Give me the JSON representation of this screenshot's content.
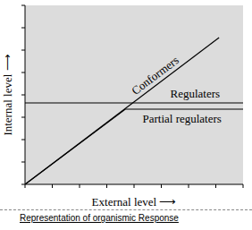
{
  "chart_data": {
    "type": "line",
    "caption": "Representation of organismic Response",
    "x_label": "External level ⟶",
    "y_label": "Internal level ⟶",
    "xlim": [
      0,
      10
    ],
    "ylim": [
      0,
      10
    ],
    "xticks": [
      0,
      1.25,
      2.5,
      3.75,
      5,
      6.25,
      7.5,
      8.75,
      10
    ],
    "yticks": [
      0,
      1.25,
      2.5,
      3.75,
      5,
      6.25,
      7.5,
      8.75,
      10
    ],
    "tick_labels": false,
    "grid": false,
    "series": [
      {
        "name": "Conformers",
        "color": "#000000",
        "x": [
          0,
          8.9
        ],
        "values": [
          0,
          8.2
        ]
      },
      {
        "name": "Regulaters",
        "color": "#000000",
        "x": [
          0,
          10
        ],
        "values": [
          4.55,
          4.55
        ]
      },
      {
        "name": "Partial regulaters",
        "color": "#000000",
        "x": [
          0,
          4.6,
          10
        ],
        "values": [
          0,
          4.2,
          4.2
        ]
      }
    ]
  }
}
